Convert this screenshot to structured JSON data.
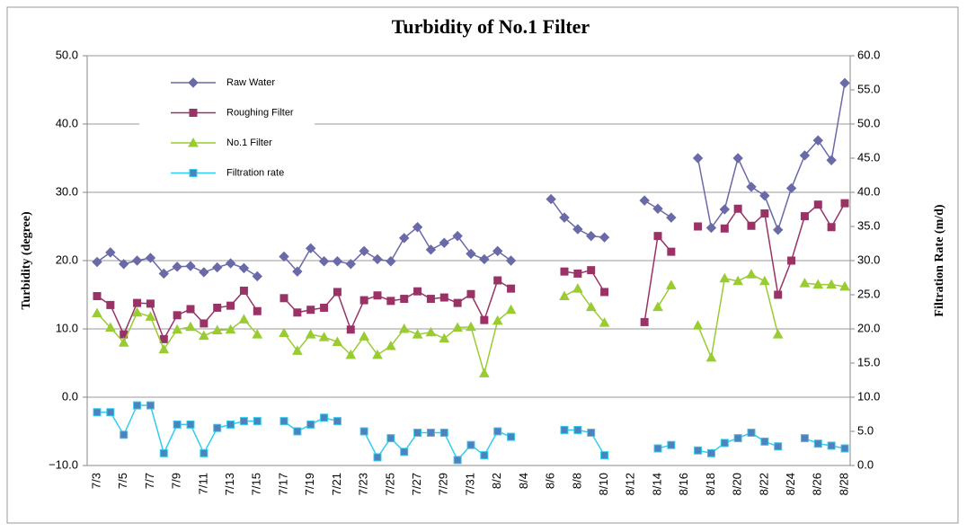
{
  "chart_data": {
    "type": "line",
    "title": "Turbidity of No.1 Filter",
    "ylabel": "Turbidity (degree)",
    "y2label": "Filtration Rate (m/d)",
    "categories": [
      "7/3",
      null,
      "7/5",
      null,
      "7/7",
      null,
      "7/9",
      null,
      "7/11",
      null,
      "7/13",
      null,
      "7/15",
      null,
      "7/17",
      null,
      "7/19",
      null,
      "7/21",
      null,
      "7/23",
      null,
      "7/25",
      null,
      "7/27",
      null,
      "7/29",
      null,
      "7/31",
      null,
      "8/2",
      null,
      "8/4",
      null,
      "8/6",
      null,
      "8/8",
      null,
      "8/10",
      null,
      "8/12",
      null,
      "8/14",
      null,
      "8/16",
      null,
      "8/18",
      null,
      "8/20",
      null,
      "8/22",
      null,
      "8/24",
      null,
      "8/26",
      null,
      "8/28"
    ],
    "ylim": [
      -10,
      50
    ],
    "yticks": [
      {
        "value": -10,
        "label": "−10.0"
      },
      {
        "value": 0,
        "label": "0.0"
      },
      {
        "value": 10,
        "label": "10.0"
      },
      {
        "value": 20,
        "label": "20.0"
      },
      {
        "value": 30,
        "label": "30.0"
      },
      {
        "value": 40,
        "label": "40.0"
      },
      {
        "value": 50,
        "label": "50.0"
      }
    ],
    "y2lim": [
      0,
      60
    ],
    "y2ticks": [
      {
        "value": 0,
        "label": "0.0"
      },
      {
        "value": 5,
        "label": "5.0"
      },
      {
        "value": 10,
        "label": "10.0"
      },
      {
        "value": 15,
        "label": "15.0"
      },
      {
        "value": 20,
        "label": "20.0"
      },
      {
        "value": 25,
        "label": "25.0"
      },
      {
        "value": 30,
        "label": "30.0"
      },
      {
        "value": 35,
        "label": "35.0"
      },
      {
        "value": 40,
        "label": "40.0"
      },
      {
        "value": 45,
        "label": "45.0"
      },
      {
        "value": 50,
        "label": "50.0"
      },
      {
        "value": 55,
        "label": "55.0"
      },
      {
        "value": 60,
        "label": "60.0"
      }
    ],
    "grid": true,
    "legend": "upper left",
    "series": [
      {
        "name": "Raw Water",
        "color": "#6a6aa8",
        "marker": "diamond",
        "values": [
          19.8,
          21.2,
          19.5,
          20.0,
          20.4,
          18.1,
          19.1,
          19.2,
          18.3,
          19.0,
          19.6,
          18.9,
          17.7,
          null,
          20.6,
          18.4,
          21.8,
          19.9,
          19.9,
          19.5,
          21.4,
          20.2,
          19.9,
          23.3,
          24.9,
          21.6,
          22.6,
          23.6,
          21.0,
          20.2,
          21.4,
          20.0,
          null,
          null,
          29.0,
          26.3,
          24.6,
          23.6,
          23.4,
          null,
          null,
          28.8,
          27.6,
          26.3,
          null,
          35.0,
          24.8,
          27.5,
          35.0,
          30.8,
          29.5,
          24.5,
          30.6,
          35.4,
          37.6,
          34.7,
          46.0
        ]
      },
      {
        "name": "Roughing Filter",
        "color": "#993366",
        "marker": "square",
        "values": [
          14.8,
          13.5,
          9.2,
          13.8,
          13.7,
          8.5,
          12.0,
          12.9,
          10.8,
          13.1,
          13.4,
          15.6,
          12.6,
          null,
          14.5,
          12.4,
          12.8,
          13.1,
          15.4,
          9.9,
          14.2,
          14.9,
          14.1,
          14.4,
          15.5,
          14.4,
          14.6,
          13.8,
          15.1,
          11.3,
          17.1,
          15.9,
          null,
          null,
          null,
          18.4,
          18.1,
          18.6,
          15.4,
          null,
          null,
          11.0,
          23.6,
          21.3,
          null,
          25.0,
          null,
          24.7,
          27.6,
          25.1,
          26.9,
          15.0,
          20.0,
          26.5,
          28.2,
          24.9,
          28.4
        ]
      },
      {
        "name": "No.1 Filter",
        "color": "#99cc33",
        "marker": "triangle",
        "values": [
          12.3,
          10.2,
          8.0,
          12.4,
          11.8,
          7.0,
          9.9,
          10.3,
          9.0,
          9.8,
          9.9,
          11.4,
          9.2,
          null,
          9.4,
          6.8,
          9.2,
          8.8,
          8.1,
          6.2,
          8.9,
          6.2,
          7.5,
          10.0,
          9.2,
          9.5,
          8.6,
          10.2,
          10.3,
          3.5,
          11.2,
          12.8,
          null,
          null,
          null,
          14.8,
          15.9,
          13.2,
          10.9,
          null,
          null,
          null,
          13.2,
          16.4,
          null,
          10.5,
          5.8,
          17.4,
          17.0,
          18.0,
          17.0,
          9.2,
          null,
          16.7,
          16.5,
          16.5,
          16.2
        ]
      },
      {
        "name": "Filtration rate",
        "color": "#33ccee",
        "marker": "square",
        "axis": "y2",
        "values": [
          7.8,
          7.8,
          4.5,
          8.8,
          8.8,
          1.8,
          6.0,
          6.0,
          1.8,
          5.5,
          6.0,
          6.5,
          6.5,
          null,
          6.5,
          5.0,
          6.0,
          7.0,
          6.5,
          null,
          5.0,
          1.2,
          4.0,
          2.0,
          4.8,
          4.8,
          4.8,
          0.8,
          3.0,
          1.5,
          5.0,
          4.2,
          null,
          null,
          null,
          5.2,
          5.2,
          4.8,
          1.5,
          null,
          null,
          null,
          2.5,
          3.0,
          null,
          2.2,
          1.8,
          3.3,
          4.0,
          4.8,
          3.5,
          2.8,
          null,
          4.0,
          3.2,
          2.9,
          2.5
        ]
      }
    ]
  }
}
